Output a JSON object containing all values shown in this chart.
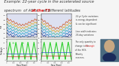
{
  "title_line1": "Example: 22-year cycle in the accelerated source",
  "title_line2_black1": "spectrum  of ACRs ",
  "title_line2_red": "at the TS",
  "title_line2_black2": " at different latitudes",
  "bg_color": "#f5f5f5",
  "text_color_black": "#333333",
  "text_color_red": "#dd1111",
  "annotation1": [
    "22-yr Cycle variations",
    "is energy dependent",
    "& can be significant",
    "",
    "Line width indicates",
    "20-day variations"
  ],
  "annotation2": [
    "The only quantity to",
    "change is the tilt angle",
    "of the HCS.",
    "Polarity",
    "reverses."
  ],
  "colors_top": [
    "#1a3a8f",
    "#1a6fbb",
    "#22aacc",
    "#44bb99",
    "#ddaa22",
    "#cc5522"
  ],
  "colors_bottom_green": "#22cc22",
  "colors_bottom_blue": "#2244cc",
  "colors_bottom_red": "#cc2222"
}
